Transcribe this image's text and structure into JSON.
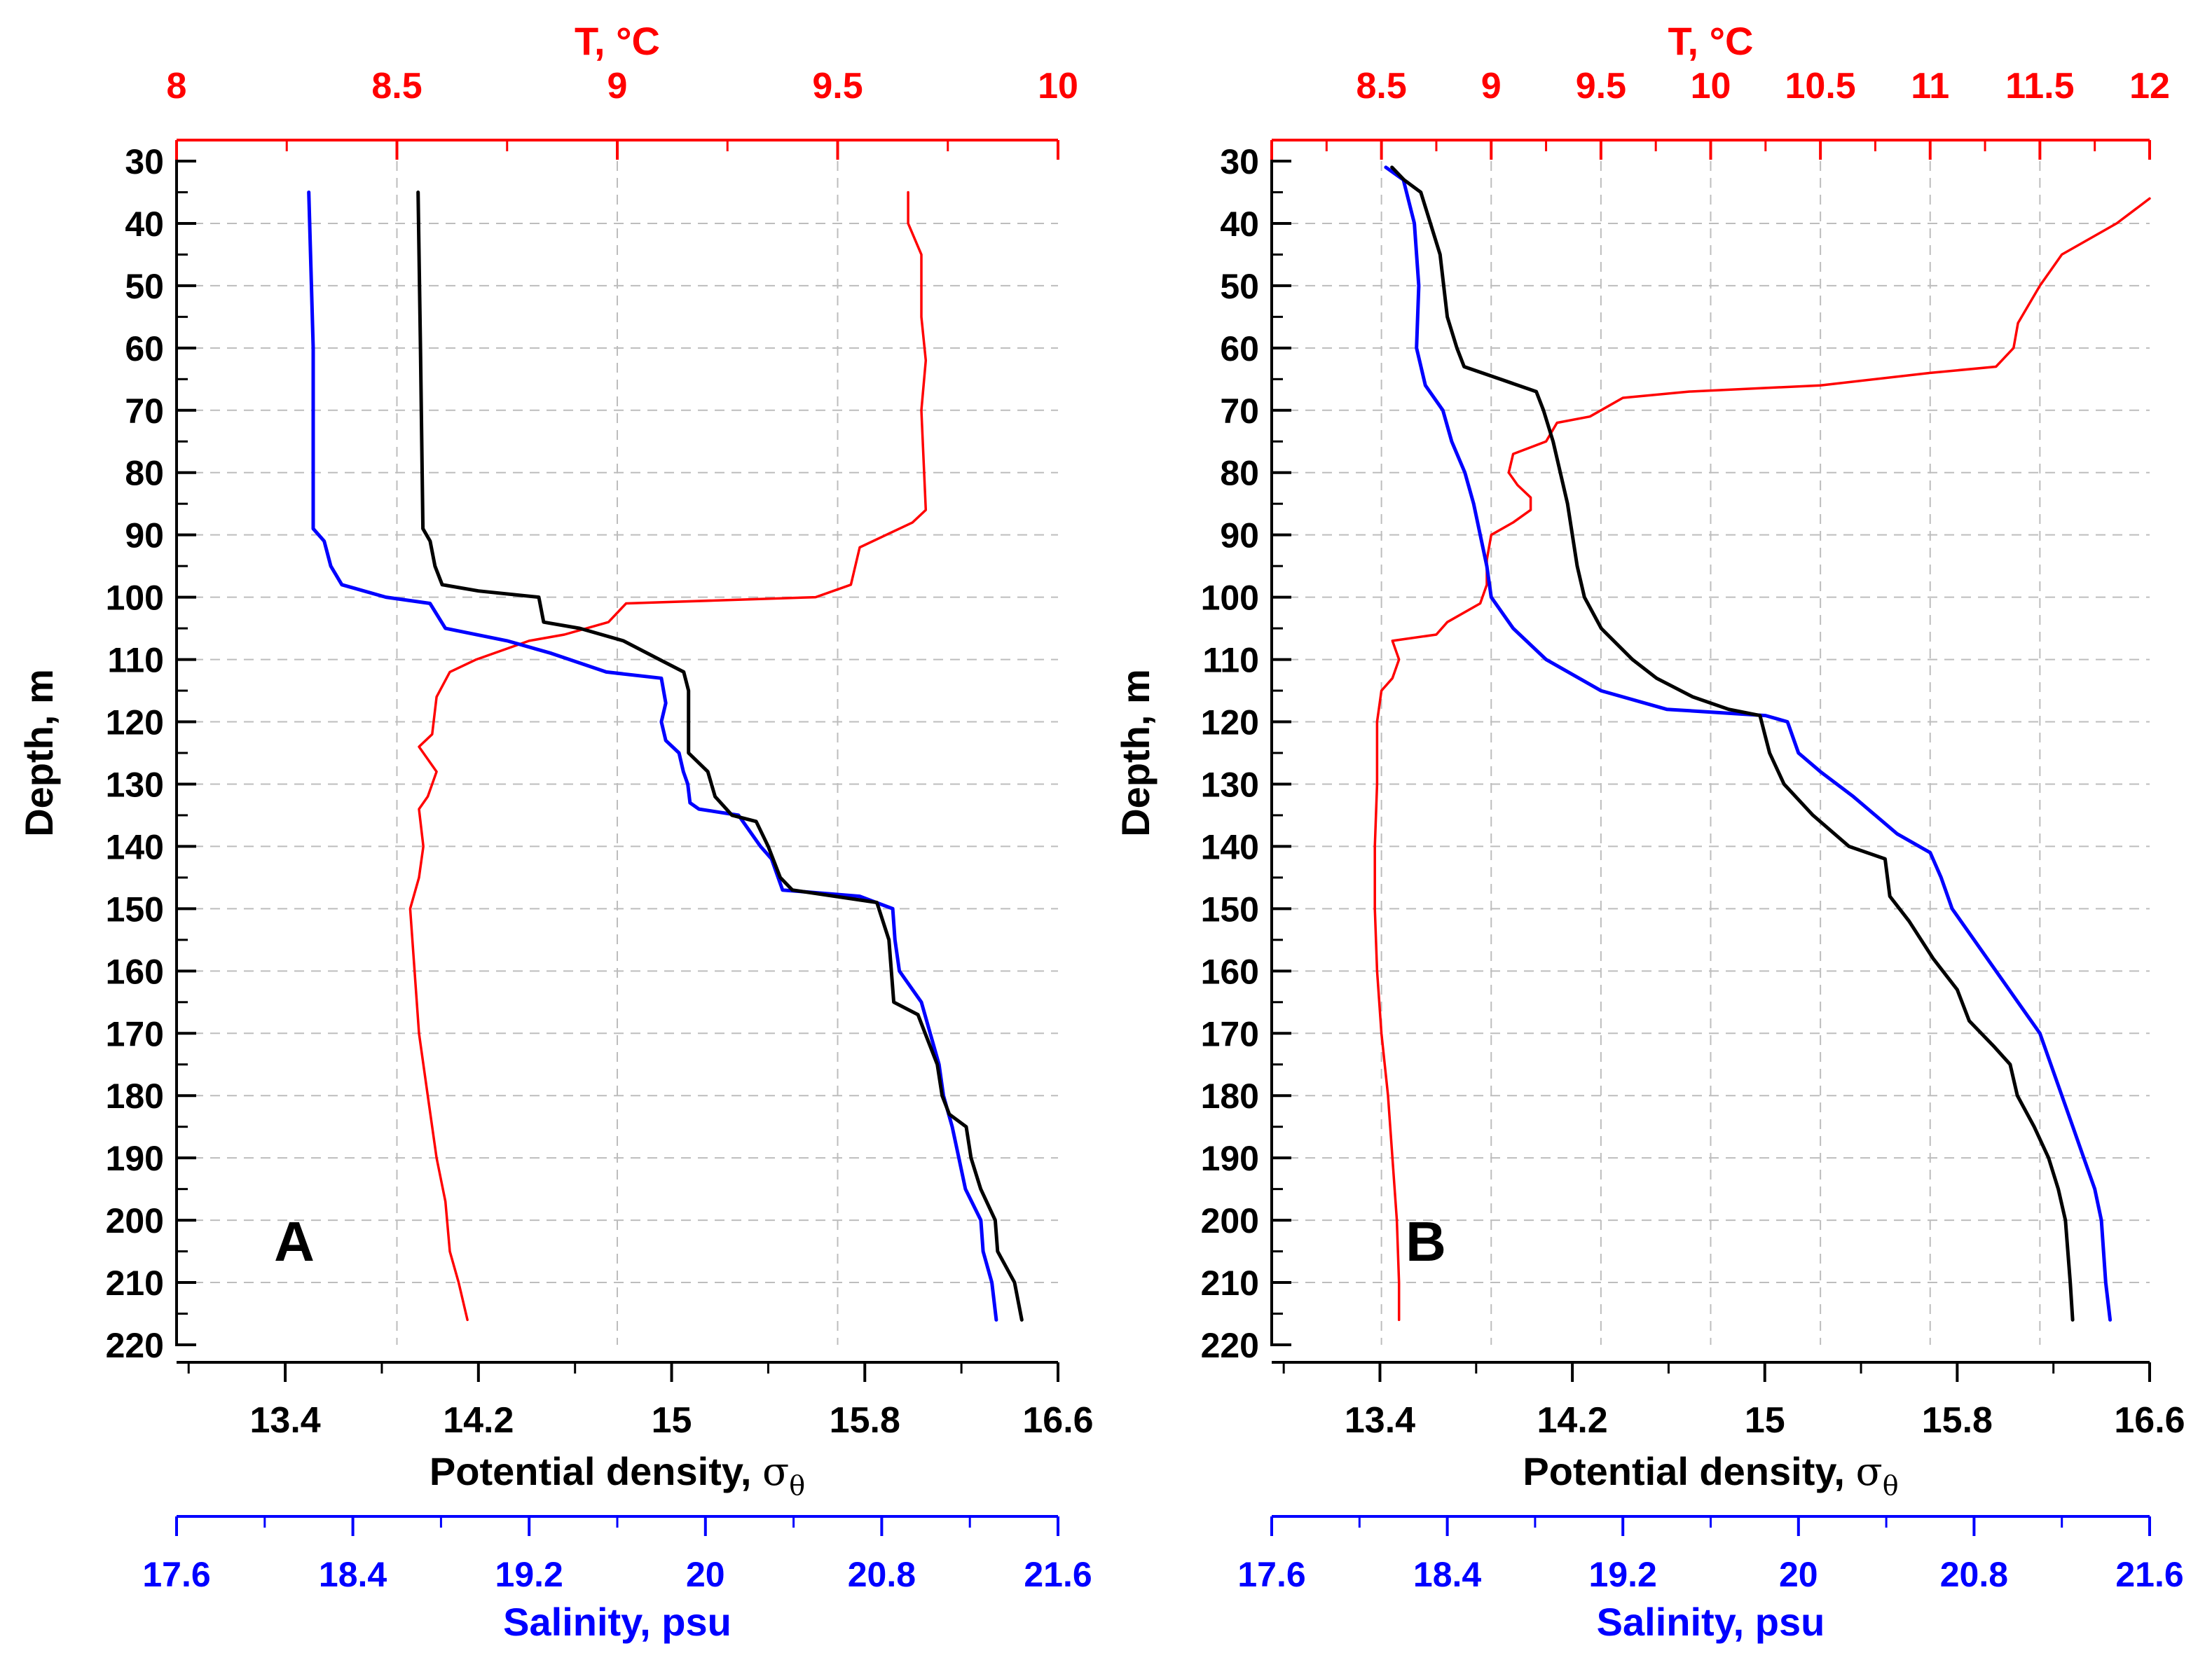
{
  "colors": {
    "temperature": "#ff0000",
    "salinity": "#0000ff",
    "density": "#000000",
    "grid": "#bdbdbd"
  },
  "chart_data": [
    {
      "type": "line",
      "panel_label": "A",
      "y_axis": {
        "label": "Depth, m",
        "range": [
          30,
          220
        ],
        "inverted": true,
        "ticks": [
          "30",
          "40",
          "50",
          "60",
          "70",
          "80",
          "90",
          "100",
          "110",
          "120",
          "130",
          "140",
          "150",
          "160",
          "170",
          "180",
          "190",
          "200",
          "210",
          "220"
        ]
      },
      "top_axis": {
        "label": "T, °C",
        "range": [
          8,
          10
        ],
        "ticks": [
          "8",
          "8.5",
          "9",
          "9.5",
          "10"
        ]
      },
      "bottom_axis": {
        "label": "Potential density, ",
        "symbol": "σ",
        "subscript": "θ",
        "range": [
          12.95,
          16.6
        ],
        "ticks": [
          "13.4",
          "14.2",
          "15",
          "15.8",
          "16.6"
        ]
      },
      "salinity_axis": {
        "label": "Salinity, psu",
        "range": [
          17.6,
          21.6
        ],
        "ticks": [
          "17.6",
          "18.4",
          "19.2",
          "20",
          "20.8",
          "21.6"
        ]
      },
      "series": [
        {
          "name": "Temperature",
          "unit": "°C",
          "axis": "top",
          "points": [
            [
              9.66,
              35
            ],
            [
              9.66,
              40
            ],
            [
              9.69,
              45
            ],
            [
              9.69,
              55
            ],
            [
              9.7,
              62
            ],
            [
              9.69,
              70
            ],
            [
              9.7,
              86
            ],
            [
              9.67,
              88
            ],
            [
              9.55,
              92
            ],
            [
              9.53,
              98
            ],
            [
              9.45,
              100
            ],
            [
              9.02,
              101
            ],
            [
              8.98,
              104
            ],
            [
              8.88,
              106
            ],
            [
              8.8,
              107
            ],
            [
              8.68,
              110
            ],
            [
              8.62,
              112
            ],
            [
              8.59,
              116
            ],
            [
              8.58,
              122
            ],
            [
              8.55,
              124
            ],
            [
              8.59,
              128
            ],
            [
              8.57,
              132
            ],
            [
              8.55,
              134
            ],
            [
              8.56,
              140
            ],
            [
              8.55,
              145
            ],
            [
              8.53,
              150
            ],
            [
              8.54,
              160
            ],
            [
              8.55,
              170
            ],
            [
              8.57,
              180
            ],
            [
              8.59,
              190
            ],
            [
              8.61,
              197
            ],
            [
              8.62,
              205
            ],
            [
              8.64,
              210
            ],
            [
              8.66,
              216
            ]
          ]
        },
        {
          "name": "Salinity",
          "unit": "psu",
          "axis": "salinity",
          "points": [
            [
              18.2,
              35
            ],
            [
              18.22,
              60
            ],
            [
              18.22,
              89
            ],
            [
              18.27,
              91
            ],
            [
              18.3,
              95
            ],
            [
              18.35,
              98
            ],
            [
              18.55,
              100
            ],
            [
              18.75,
              101
            ],
            [
              18.82,
              105
            ],
            [
              19.1,
              107
            ],
            [
              19.3,
              109
            ],
            [
              19.55,
              112
            ],
            [
              19.8,
              113
            ],
            [
              19.82,
              117
            ],
            [
              19.8,
              120
            ],
            [
              19.82,
              123
            ],
            [
              19.88,
              125
            ],
            [
              19.9,
              128
            ],
            [
              19.92,
              130
            ],
            [
              19.93,
              133
            ],
            [
              19.97,
              134
            ],
            [
              20.15,
              135
            ],
            [
              20.25,
              140
            ],
            [
              20.3,
              142
            ],
            [
              20.35,
              147
            ],
            [
              20.7,
              148
            ],
            [
              20.85,
              150
            ],
            [
              20.86,
              155
            ],
            [
              20.88,
              160
            ],
            [
              20.98,
              165
            ],
            [
              21.02,
              170
            ],
            [
              21.06,
              175
            ],
            [
              21.08,
              180
            ],
            [
              21.12,
              185
            ],
            [
              21.15,
              190
            ],
            [
              21.18,
              195
            ],
            [
              21.25,
              200
            ],
            [
              21.26,
              205
            ],
            [
              21.3,
              210
            ],
            [
              21.32,
              216
            ]
          ]
        },
        {
          "name": "Potential density",
          "unit": "σθ",
          "axis": "bottom",
          "points": [
            [
              13.95,
              35
            ],
            [
              13.96,
              60
            ],
            [
              13.97,
              89
            ],
            [
              14.0,
              91
            ],
            [
              14.02,
              95
            ],
            [
              14.05,
              98
            ],
            [
              14.2,
              99
            ],
            [
              14.45,
              100
            ],
            [
              14.47,
              104
            ],
            [
              14.62,
              105
            ],
            [
              14.8,
              107
            ],
            [
              14.95,
              110
            ],
            [
              15.05,
              112
            ],
            [
              15.07,
              115
            ],
            [
              15.07,
              125
            ],
            [
              15.15,
              128
            ],
            [
              15.18,
              132
            ],
            [
              15.25,
              135
            ],
            [
              15.35,
              136
            ],
            [
              15.4,
              140
            ],
            [
              15.45,
              145
            ],
            [
              15.5,
              147
            ],
            [
              15.85,
              149
            ],
            [
              15.9,
              155
            ],
            [
              15.92,
              165
            ],
            [
              16.02,
              167
            ],
            [
              16.05,
              170
            ],
            [
              16.1,
              175
            ],
            [
              16.12,
              180
            ],
            [
              16.15,
              183
            ],
            [
              16.22,
              185
            ],
            [
              16.24,
              190
            ],
            [
              16.28,
              195
            ],
            [
              16.34,
              200
            ],
            [
              16.35,
              205
            ],
            [
              16.42,
              210
            ],
            [
              16.45,
              216
            ]
          ]
        }
      ]
    },
    {
      "type": "line",
      "panel_label": "B",
      "y_axis": {
        "label": "Depth, m",
        "range": [
          30,
          220
        ],
        "inverted": true,
        "ticks": [
          "30",
          "40",
          "50",
          "60",
          "70",
          "80",
          "90",
          "100",
          "110",
          "120",
          "130",
          "140",
          "150",
          "160",
          "170",
          "180",
          "190",
          "200",
          "210",
          "220"
        ]
      },
      "top_axis": {
        "label": "T, °C",
        "range": [
          8,
          12
        ],
        "ticks": [
          "8.5",
          "9",
          "9.5",
          "10",
          "10.5",
          "11",
          "11.5",
          "12"
        ]
      },
      "bottom_axis": {
        "label": "Potential density, ",
        "symbol": "σ",
        "subscript": "θ",
        "range": [
          12.95,
          16.6
        ],
        "ticks": [
          "13.4",
          "14.2",
          "15",
          "15.8",
          "16.6"
        ]
      },
      "salinity_axis": {
        "label": "Salinity, psu",
        "range": [
          17.6,
          21.6
        ],
        "ticks": [
          "17.6",
          "18.4",
          "19.2",
          "20",
          "20.8",
          "21.6"
        ]
      },
      "series": [
        {
          "name": "Temperature",
          "unit": "°C",
          "axis": "top",
          "points": [
            [
              12.0,
              36
            ],
            [
              11.85,
              40
            ],
            [
              11.6,
              45
            ],
            [
              11.5,
              50
            ],
            [
              11.4,
              56
            ],
            [
              11.38,
              60
            ],
            [
              11.3,
              63
            ],
            [
              11.0,
              64
            ],
            [
              10.5,
              66
            ],
            [
              9.9,
              67
            ],
            [
              9.6,
              68
            ],
            [
              9.5,
              70
            ],
            [
              9.45,
              71
            ],
            [
              9.3,
              72
            ],
            [
              9.25,
              75
            ],
            [
              9.1,
              77
            ],
            [
              9.08,
              80
            ],
            [
              9.12,
              82
            ],
            [
              9.18,
              84
            ],
            [
              9.18,
              86
            ],
            [
              9.1,
              88
            ],
            [
              9.0,
              90
            ],
            [
              8.98,
              94
            ],
            [
              8.98,
              98
            ],
            [
              8.95,
              101
            ],
            [
              8.8,
              104
            ],
            [
              8.75,
              106
            ],
            [
              8.55,
              107
            ],
            [
              8.58,
              110
            ],
            [
              8.55,
              113
            ],
            [
              8.5,
              115
            ],
            [
              8.48,
              120
            ],
            [
              8.48,
              130
            ],
            [
              8.47,
              140
            ],
            [
              8.47,
              150
            ],
            [
              8.48,
              160
            ],
            [
              8.5,
              170
            ],
            [
              8.53,
              180
            ],
            [
              8.55,
              190
            ],
            [
              8.57,
              200
            ],
            [
              8.58,
              210
            ],
            [
              8.58,
              216
            ]
          ]
        },
        {
          "name": "Salinity",
          "unit": "psu",
          "axis": "salinity",
          "points": [
            [
              18.12,
              31
            ],
            [
              18.2,
              33
            ],
            [
              18.25,
              40
            ],
            [
              18.27,
              50
            ],
            [
              18.26,
              60
            ],
            [
              18.3,
              66
            ],
            [
              18.38,
              70
            ],
            [
              18.42,
              75
            ],
            [
              18.48,
              80
            ],
            [
              18.52,
              85
            ],
            [
              18.55,
              90
            ],
            [
              18.58,
              95
            ],
            [
              18.6,
              100
            ],
            [
              18.7,
              105
            ],
            [
              18.85,
              110
            ],
            [
              19.1,
              115
            ],
            [
              19.4,
              118
            ],
            [
              19.85,
              119
            ],
            [
              19.95,
              120
            ],
            [
              20.0,
              125
            ],
            [
              20.1,
              128
            ],
            [
              20.25,
              132
            ],
            [
              20.35,
              135
            ],
            [
              20.45,
              138
            ],
            [
              20.6,
              141
            ],
            [
              20.65,
              145
            ],
            [
              20.7,
              150
            ],
            [
              20.8,
              155
            ],
            [
              20.9,
              160
            ],
            [
              21.0,
              165
            ],
            [
              21.1,
              170
            ],
            [
              21.15,
              175
            ],
            [
              21.2,
              180
            ],
            [
              21.25,
              185
            ],
            [
              21.3,
              190
            ],
            [
              21.35,
              195
            ],
            [
              21.38,
              200
            ],
            [
              21.4,
              210
            ],
            [
              21.42,
              216
            ]
          ]
        },
        {
          "name": "Potential density",
          "unit": "σθ",
          "axis": "bottom",
          "points": [
            [
              13.45,
              31
            ],
            [
              13.5,
              33
            ],
            [
              13.57,
              35
            ],
            [
              13.65,
              45
            ],
            [
              13.68,
              55
            ],
            [
              13.72,
              60
            ],
            [
              13.75,
              63
            ],
            [
              13.9,
              65
            ],
            [
              14.05,
              67
            ],
            [
              14.08,
              70
            ],
            [
              14.12,
              75
            ],
            [
              14.15,
              80
            ],
            [
              14.18,
              85
            ],
            [
              14.2,
              90
            ],
            [
              14.22,
              95
            ],
            [
              14.25,
              100
            ],
            [
              14.32,
              105
            ],
            [
              14.45,
              110
            ],
            [
              14.55,
              113
            ],
            [
              14.7,
              116
            ],
            [
              14.85,
              118
            ],
            [
              14.98,
              119
            ],
            [
              15.0,
              122
            ],
            [
              15.02,
              125
            ],
            [
              15.08,
              130
            ],
            [
              15.2,
              135
            ],
            [
              15.35,
              140
            ],
            [
              15.5,
              142
            ],
            [
              15.52,
              148
            ],
            [
              15.6,
              152
            ],
            [
              15.7,
              158
            ],
            [
              15.8,
              163
            ],
            [
              15.85,
              168
            ],
            [
              15.95,
              172
            ],
            [
              16.02,
              175
            ],
            [
              16.05,
              180
            ],
            [
              16.12,
              185
            ],
            [
              16.18,
              190
            ],
            [
              16.22,
              195
            ],
            [
              16.25,
              200
            ],
            [
              16.27,
              210
            ],
            [
              16.28,
              216
            ]
          ]
        }
      ]
    }
  ]
}
